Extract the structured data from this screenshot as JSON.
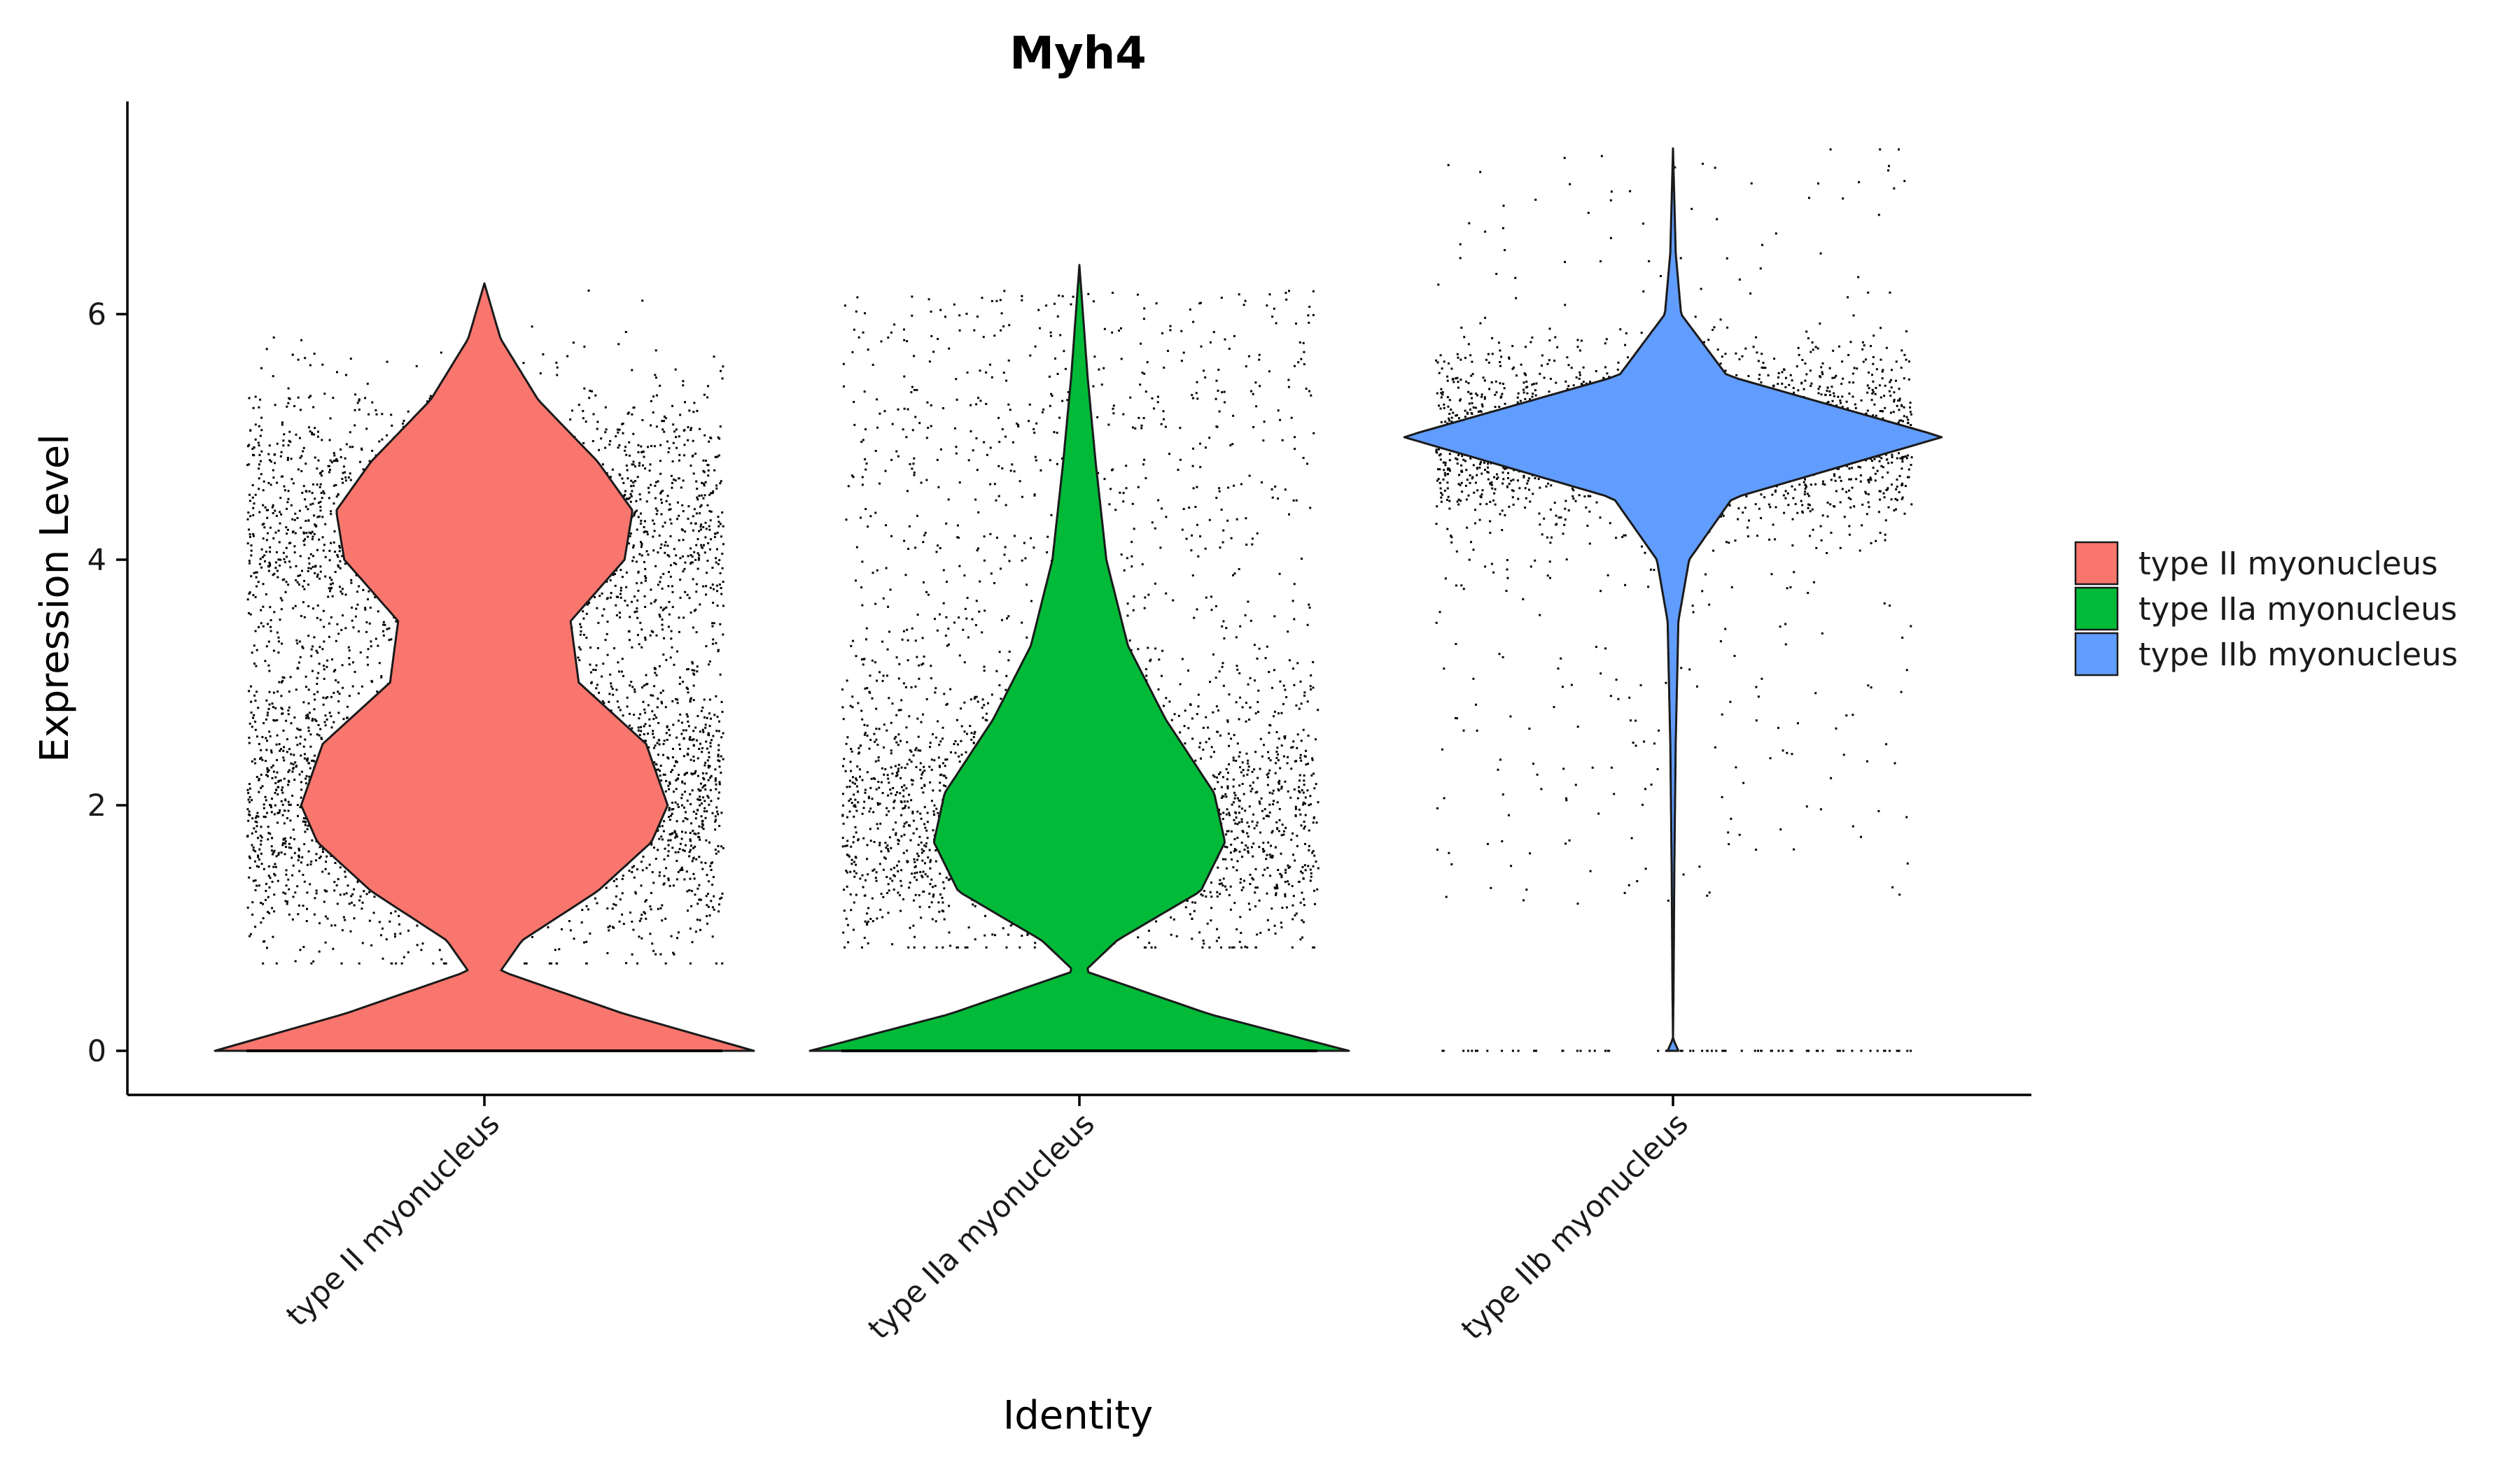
{
  "chart_data": {
    "type": "violin",
    "title": "Myh4",
    "xlabel": "Identity",
    "ylabel": "Expression Level",
    "ylim": [
      -0.35,
      7.75
    ],
    "yticks": [
      0,
      2,
      4,
      6
    ],
    "grid": false,
    "legend_position": "right",
    "categories": [
      "type II myonucleus",
      "type IIa myonucleus",
      "type IIb myonucleus"
    ],
    "colors": [
      "#F8766D",
      "#00BA38",
      "#619CFF"
    ],
    "series": [
      {
        "name": "type II myonucleus",
        "max": 6.25,
        "zero_fraction": "high",
        "density_profile": [
          [
            0,
            1.0
          ],
          [
            0.3,
            0.52
          ],
          [
            0.65,
            0.06
          ],
          [
            0.9,
            0.14
          ],
          [
            1.3,
            0.42
          ],
          [
            1.7,
            0.62
          ],
          [
            2.0,
            0.68
          ],
          [
            2.5,
            0.6
          ],
          [
            3.0,
            0.35
          ],
          [
            3.5,
            0.32
          ],
          [
            4.0,
            0.52
          ],
          [
            4.4,
            0.55
          ],
          [
            4.8,
            0.42
          ],
          [
            5.3,
            0.2
          ],
          [
            5.8,
            0.06
          ],
          [
            6.25,
            0.0
          ]
        ]
      },
      {
        "name": "type IIa myonucleus",
        "max": 6.4,
        "zero_fraction": "high",
        "density_profile": [
          [
            0,
            1.0
          ],
          [
            0.3,
            0.48
          ],
          [
            0.65,
            0.02
          ],
          [
            0.9,
            0.14
          ],
          [
            1.3,
            0.45
          ],
          [
            1.7,
            0.54
          ],
          [
            2.1,
            0.5
          ],
          [
            2.7,
            0.32
          ],
          [
            3.3,
            0.18
          ],
          [
            4.0,
            0.1
          ],
          [
            4.8,
            0.06
          ],
          [
            5.5,
            0.03
          ],
          [
            6.4,
            0.0
          ]
        ]
      },
      {
        "name": "type IIb myonucleus",
        "max": 7.35,
        "zero_fraction": "low",
        "density_profile": [
          [
            0,
            0.02
          ],
          [
            0.1,
            0.0
          ],
          [
            0.5,
            0.002
          ],
          [
            1.5,
            0.005
          ],
          [
            2.5,
            0.01
          ],
          [
            3.5,
            0.02
          ],
          [
            4.0,
            0.06
          ],
          [
            4.5,
            0.22
          ],
          [
            5.0,
            1.0
          ],
          [
            5.5,
            0.2
          ],
          [
            6.0,
            0.03
          ],
          [
            6.5,
            0.01
          ],
          [
            7.35,
            0.0
          ]
        ]
      }
    ]
  }
}
